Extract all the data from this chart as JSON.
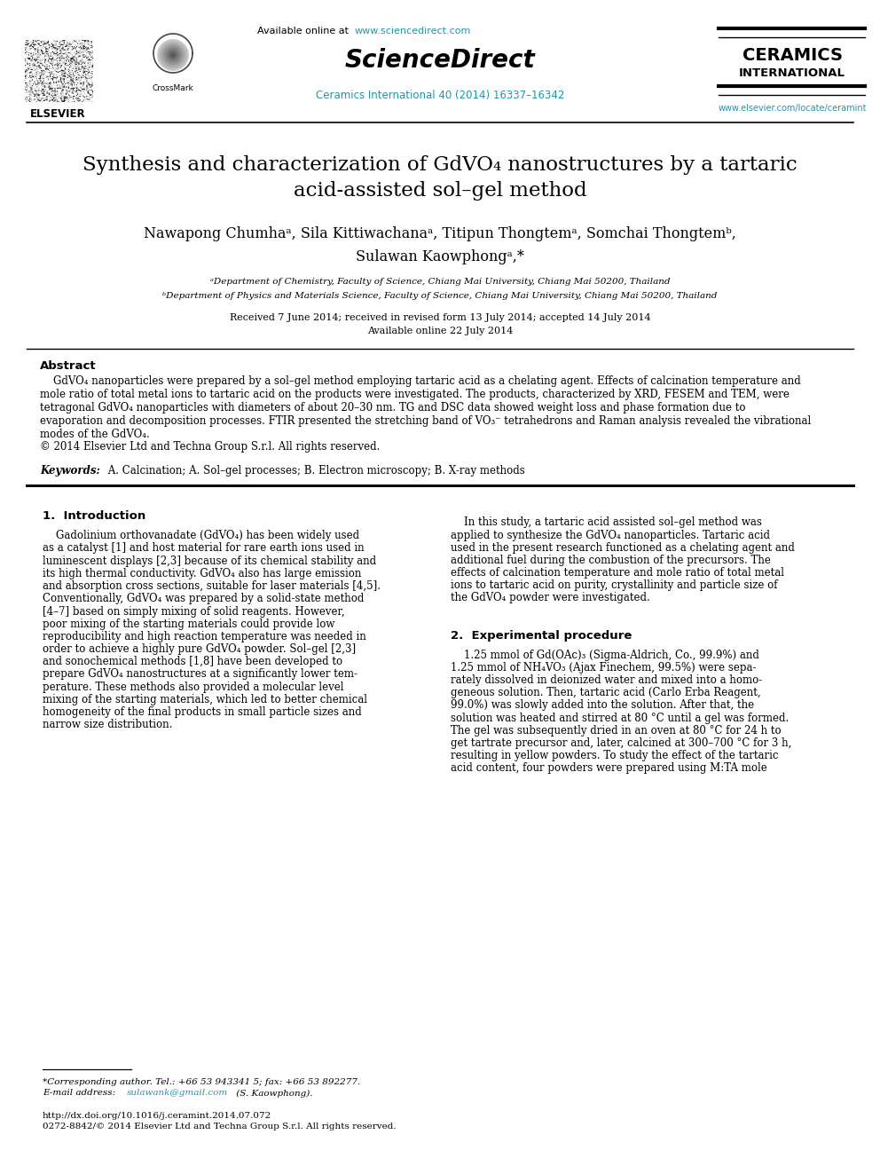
{
  "bg_color": "#ffffff",
  "link_color": "#2196a8",
  "text_color": "#000000",
  "header_available_label": "Available online at",
  "header_www_sd": "www.sciencedirect.com",
  "header_sciencedirect": "ScienceDirect",
  "header_journal": "Ceramics International 40 (2014) 16337–16342",
  "header_ceramics1": "CERAMICS",
  "header_ceramics2": "INTERNATIONAL",
  "header_www_elsevier": "www.elsevier.com/locate/ceramint",
  "title_line1": "Synthesis and characterization of GdVO₄ nanostructures by a tartaric",
  "title_line2": "acid-assisted sol–gel method",
  "authors_line1": "Nawapong Chumhaᵃ, Sila Kittiwachanaᵃ, Titipun Thongtemᵃ, Somchai Thongtemᵇ,",
  "authors_line2": "Sulawan Kaowphongᵃ,*",
  "affil_a": "ᵃDepartment of Chemistry, Faculty of Science, Chiang Mai University, Chiang Mai 50200, Thailand",
  "affil_b": "ᵇDepartment of Physics and Materials Science, Faculty of Science, Chiang Mai University, Chiang Mai 50200, Thailand",
  "received": "Received 7 June 2014; received in revised form 13 July 2014; accepted 14 July 2014",
  "available_online_date": "Available online 22 July 2014",
  "abstract_title": "Abstract",
  "abstract_lines": [
    "    GdVO₄ nanoparticles were prepared by a sol–gel method employing tartaric acid as a chelating agent. Effects of calcination temperature and",
    "mole ratio of total metal ions to tartaric acid on the products were investigated. The products, characterized by XRD, FESEM and TEM, were",
    "tetragonal GdVO₄ nanoparticles with diameters of about 20–30 nm. TG and DSC data showed weight loss and phase formation due to",
    "evaporation and decomposition processes. FTIR presented the stretching band of VO₃⁻ tetrahedrons and Raman analysis revealed the vibrational",
    "modes of the GdVO₄.",
    "© 2014 Elsevier Ltd and Techna Group S.r.l. All rights reserved."
  ],
  "keywords_label": "Keywords:",
  "keywords_text": " A. Calcination; A. Sol–gel processes; B. Electron microscopy; B. X-ray methods",
  "section1_title": "1.  Introduction",
  "intro_left_lines": [
    "    Gadolinium orthovanadate (GdVO₄) has been widely used",
    "as a catalyst [1] and host material for rare earth ions used in",
    "luminescent displays [2,3] because of its chemical stability and",
    "its high thermal conductivity. GdVO₄ also has large emission",
    "and absorption cross sections, suitable for laser materials [4,5].",
    "Conventionally, GdVO₄ was prepared by a solid-state method",
    "[4–7] based on simply mixing of solid reagents. However,",
    "poor mixing of the starting materials could provide low",
    "reproducibility and high reaction temperature was needed in",
    "order to achieve a highly pure GdVO₄ powder. Sol–gel [2,3]",
    "and sonochemical methods [1,8] have been developed to",
    "prepare GdVO₄ nanostructures at a significantly lower tem-",
    "perature. These methods also provided a molecular level",
    "mixing of the starting materials, which led to better chemical",
    "homogeneity of the final products in small particle sizes and",
    "narrow size distribution."
  ],
  "intro_right_lines": [
    "    In this study, a tartaric acid assisted sol–gel method was",
    "applied to synthesize the GdVO₄ nanoparticles. Tartaric acid",
    "used in the present research functioned as a chelating agent and",
    "additional fuel during the combustion of the precursors. The",
    "effects of calcination temperature and mole ratio of total metal",
    "ions to tartaric acid on purity, crystallinity and particle size of",
    "the GdVO₄ powder were investigated."
  ],
  "section2_title": "2.  Experimental procedure",
  "exp_right_lines": [
    "    1.25 mmol of Gd(OAc)₃ (Sigma-Aldrich, Co., 99.9%) and",
    "1.25 mmol of NH₄VO₃ (Ajax Finechem, 99.5%) were sepa-",
    "rately dissolved in deionized water and mixed into a homo-",
    "geneous solution. Then, tartaric acid (Carlo Erba Reagent,",
    "99.0%) was slowly added into the solution. After that, the",
    "solution was heated and stirred at 80 °C until a gel was formed.",
    "The gel was subsequently dried in an oven at 80 °C for 24 h to",
    "get tartrate precursor and, later, calcined at 300–700 °C for 3 h,",
    "resulting in yellow powders. To study the effect of the tartaric",
    "acid content, four powders were prepared using M:TA mole"
  ],
  "footnote1": "*Corresponding author. Tel.: +66 53 943341 5; fax: +66 53 892277.",
  "footnote2_pre": "E-mail address: ",
  "footnote2_link": "sulawank@gmail.com",
  "footnote2_post": " (S. Kaowphong).",
  "footnote3": "http://dx.doi.org/10.1016/j.ceramint.2014.07.072",
  "footnote4": "0272-8842/© 2014 Elsevier Ltd and Techna Group S.r.l. All rights reserved."
}
